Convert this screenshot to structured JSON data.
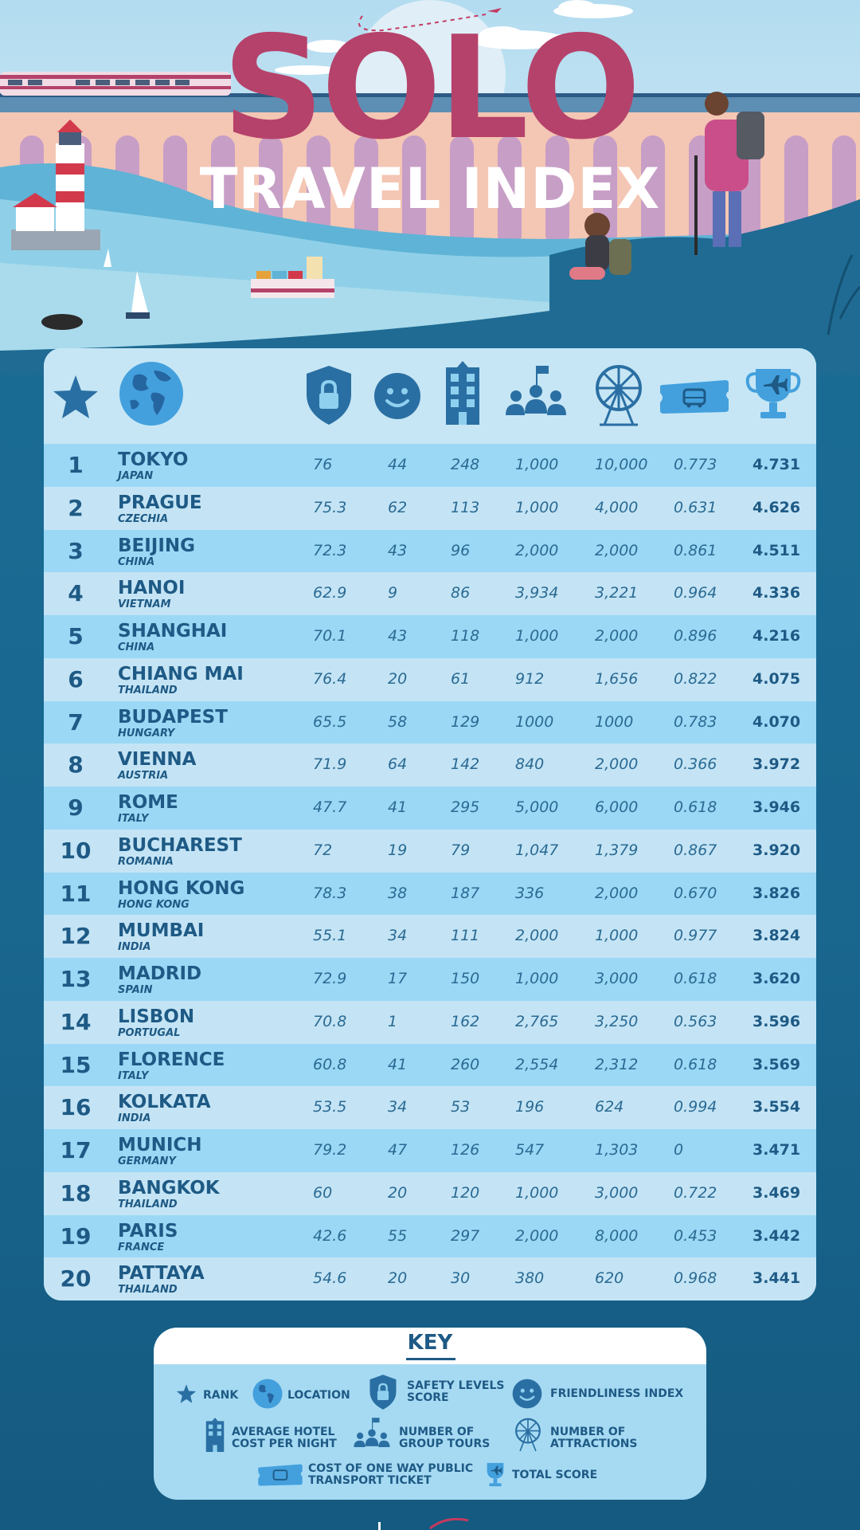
{
  "header": {
    "title_main": "SOLO",
    "title_sub": "TRAVEL INDEX"
  },
  "table": {
    "columns": [
      {
        "key": "rank",
        "icon": "star-icon"
      },
      {
        "key": "location",
        "icon": "globe-icon"
      },
      {
        "key": "safety",
        "icon": "shield-lock-icon"
      },
      {
        "key": "friendliness",
        "icon": "smiley-icon"
      },
      {
        "key": "hotel",
        "icon": "hotel-building-icon"
      },
      {
        "key": "tours",
        "icon": "group-tour-icon"
      },
      {
        "key": "attractions",
        "icon": "ferris-wheel-icon"
      },
      {
        "key": "ticket",
        "icon": "bus-ticket-icon"
      },
      {
        "key": "total",
        "icon": "trophy-plane-icon"
      }
    ],
    "rows": [
      {
        "rank": "1",
        "city": "TOKYO",
        "country": "JAPAN",
        "safety": "76",
        "friendliness": "44",
        "hotel": "248",
        "tours": "1,000",
        "attractions": "10,000",
        "ticket": "0.773",
        "total": "4.731"
      },
      {
        "rank": "2",
        "city": "PRAGUE",
        "country": "CZECHIA",
        "safety": "75.3",
        "friendliness": "62",
        "hotel": "113",
        "tours": "1,000",
        "attractions": "4,000",
        "ticket": "0.631",
        "total": "4.626"
      },
      {
        "rank": "3",
        "city": "BEIJING",
        "country": "CHINA",
        "safety": "72.3",
        "friendliness": "43",
        "hotel": "96",
        "tours": "2,000",
        "attractions": "2,000",
        "ticket": "0.861",
        "total": "4.511"
      },
      {
        "rank": "4",
        "city": "HANOI",
        "country": "VIETNAM",
        "safety": "62.9",
        "friendliness": "9",
        "hotel": "86",
        "tours": "3,934",
        "attractions": "3,221",
        "ticket": "0.964",
        "total": "4.336"
      },
      {
        "rank": "5",
        "city": "SHANGHAI",
        "country": "CHINA",
        "safety": "70.1",
        "friendliness": "43",
        "hotel": "118",
        "tours": "1,000",
        "attractions": "2,000",
        "ticket": "0.896",
        "total": "4.216"
      },
      {
        "rank": "6",
        "city": "CHIANG MAI",
        "country": "THAILAND",
        "safety": "76.4",
        "friendliness": "20",
        "hotel": "61",
        "tours": "912",
        "attractions": "1,656",
        "ticket": "0.822",
        "total": "4.075"
      },
      {
        "rank": "7",
        "city": "BUDAPEST",
        "country": "HUNGARY",
        "safety": "65.5",
        "friendliness": "58",
        "hotel": "129",
        "tours": "1000",
        "attractions": "1000",
        "ticket": "0.783",
        "total": "4.070"
      },
      {
        "rank": "8",
        "city": "VIENNA",
        "country": "AUSTRIA",
        "safety": "71.9",
        "friendliness": "64",
        "hotel": "142",
        "tours": "840",
        "attractions": "2,000",
        "ticket": "0.366",
        "total": "3.972"
      },
      {
        "rank": "9",
        "city": "ROME",
        "country": "ITALY",
        "safety": "47.7",
        "friendliness": "41",
        "hotel": "295",
        "tours": "5,000",
        "attractions": "6,000",
        "ticket": "0.618",
        "total": "3.946"
      },
      {
        "rank": "10",
        "city": "BUCHAREST",
        "country": "ROMANIA",
        "safety": "72",
        "friendliness": "19",
        "hotel": "79",
        "tours": "1,047",
        "attractions": "1,379",
        "ticket": "0.867",
        "total": "3.920"
      },
      {
        "rank": "11",
        "city": "HONG KONG",
        "country": "HONG KONG",
        "safety": "78.3",
        "friendliness": "38",
        "hotel": "187",
        "tours": "336",
        "attractions": "2,000",
        "ticket": "0.670",
        "total": "3.826"
      },
      {
        "rank": "12",
        "city": "MUMBAI",
        "country": "INDIA",
        "safety": "55.1",
        "friendliness": "34",
        "hotel": "111",
        "tours": "2,000",
        "attractions": "1,000",
        "ticket": "0.977",
        "total": "3.824"
      },
      {
        "rank": "13",
        "city": "MADRID",
        "country": "SPAIN",
        "safety": "72.9",
        "friendliness": "17",
        "hotel": "150",
        "tours": "1,000",
        "attractions": "3,000",
        "ticket": "0.618",
        "total": "3.620"
      },
      {
        "rank": "14",
        "city": "LISBON",
        "country": "PORTUGAL",
        "safety": "70.8",
        "friendliness": "1",
        "hotel": "162",
        "tours": "2,765",
        "attractions": "3,250",
        "ticket": "0.563",
        "total": "3.596"
      },
      {
        "rank": "15",
        "city": "FLORENCE",
        "country": "ITALY",
        "safety": "60.8",
        "friendliness": "41",
        "hotel": "260",
        "tours": "2,554",
        "attractions": "2,312",
        "ticket": "0.618",
        "total": "3.569"
      },
      {
        "rank": "16",
        "city": "KOLKATA",
        "country": "INDIA",
        "safety": "53.5",
        "friendliness": "34",
        "hotel": "53",
        "tours": "196",
        "attractions": "624",
        "ticket": "0.994",
        "total": "3.554"
      },
      {
        "rank": "17",
        "city": "MUNICH",
        "country": "GERMANY",
        "safety": "79.2",
        "friendliness": "47",
        "hotel": "126",
        "tours": "547",
        "attractions": "1,303",
        "ticket": "0",
        "total": "3.471"
      },
      {
        "rank": "18",
        "city": "BANGKOK",
        "country": "THAILAND",
        "safety": "60",
        "friendliness": "20",
        "hotel": "120",
        "tours": "1,000",
        "attractions": "3,000",
        "ticket": "0.722",
        "total": "3.469"
      },
      {
        "rank": "19",
        "city": "PARIS",
        "country": "FRANCE",
        "safety": "42.6",
        "friendliness": "55",
        "hotel": "297",
        "tours": "2,000",
        "attractions": "8,000",
        "ticket": "0.453",
        "total": "3.442"
      },
      {
        "rank": "20",
        "city": "PATTAYA",
        "country": "THAILAND",
        "safety": "54.6",
        "friendliness": "20",
        "hotel": "30",
        "tours": "380",
        "attractions": "620",
        "ticket": "0.968",
        "total": "3.441"
      }
    ]
  },
  "key": {
    "title": "KEY",
    "items": [
      {
        "icon": "star-icon",
        "label": "RANK"
      },
      {
        "icon": "globe-icon",
        "label": "LOCATION"
      },
      {
        "icon": "shield-lock-icon",
        "label": "SAFETY LEVELS\nSCORE"
      },
      {
        "icon": "smiley-icon",
        "label": "FRIENDLINESS INDEX"
      },
      {
        "icon": "hotel-building-icon",
        "label": "AVERAGE HOTEL\nCOST PER NIGHT"
      },
      {
        "icon": "group-tour-icon",
        "label": "NUMBER OF\nGROUP TOURS"
      },
      {
        "icon": "ferris-wheel-icon",
        "label": "NUMBER OF\nATTRACTIONS"
      },
      {
        "icon": "bus-ticket-icon",
        "label": "COST OF ONE WAY PUBLIC\nTRANSPORT TICKET"
      },
      {
        "icon": "trophy-plane-icon",
        "label": "TOTAL SCORE"
      }
    ]
  },
  "colors": {
    "page_bg": "#1a6f98",
    "title_pink": "#b5426a",
    "icon_blue": "#2a6fa3",
    "row_dark": "#9bd8f5",
    "row_light": "#c4e4f5",
    "text_navy": "#1e5a85"
  }
}
